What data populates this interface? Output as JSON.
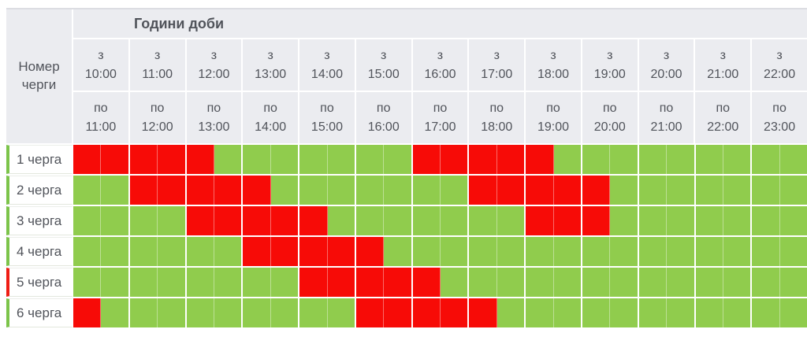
{
  "table": {
    "title": "Години доби",
    "corner_label": "Номер черги",
    "from_prefix": "з",
    "to_prefix": "по",
    "columns": [
      {
        "from": "10:00",
        "to": "11:00"
      },
      {
        "from": "11:00",
        "to": "12:00"
      },
      {
        "from": "12:00",
        "to": "13:00"
      },
      {
        "from": "13:00",
        "to": "14:00"
      },
      {
        "from": "14:00",
        "to": "15:00"
      },
      {
        "from": "15:00",
        "to": "16:00"
      },
      {
        "from": "16:00",
        "to": "17:00"
      },
      {
        "from": "17:00",
        "to": "18:00"
      },
      {
        "from": "18:00",
        "to": "19:00"
      },
      {
        "from": "19:00",
        "to": "20:00"
      },
      {
        "from": "20:00",
        "to": "21:00"
      },
      {
        "from": "21:00",
        "to": "22:00"
      },
      {
        "from": "22:00",
        "to": "23:00"
      }
    ],
    "cell_legend": {
      "R": "outage",
      "G": "power-on"
    },
    "rows": [
      {
        "label": "1 черга",
        "indicator": "green",
        "cells": "RRRRRGGGGGGGRRRRRGGGGGGGGG"
      },
      {
        "label": "2 черга",
        "indicator": "green",
        "cells": "GGRRRRRGGGGGGGRRRRRGGGGGGG"
      },
      {
        "label": "3 черга",
        "indicator": "green",
        "cells": "GGGGRRRRRGGGGGGGRRRGGGGGGG"
      },
      {
        "label": "4 черга",
        "indicator": "green",
        "cells": "GGGGGGRRRRRGGGGGGGGGGGGGGG"
      },
      {
        "label": "5 черга",
        "indicator": "red",
        "cells": "GGGGGGGGRRRRRGGGGGGGGGGGGG"
      },
      {
        "label": "6 черга",
        "indicator": "green",
        "cells": "RGGGGGGGGGRRRRRGGGGGGGGGGG"
      }
    ]
  },
  "colors": {
    "power_on": "#90CC4D",
    "power_off": "#F70B07",
    "header_bg": "#EBECF0",
    "text": "#50535A",
    "indicator_green": "#7CC44A",
    "indicator_red": "#EF1D14"
  }
}
